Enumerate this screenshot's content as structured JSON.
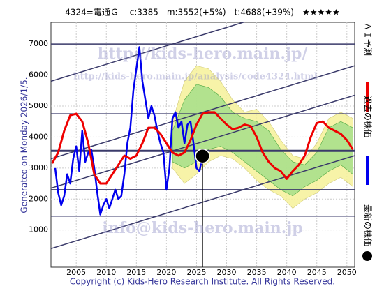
{
  "chart_data": {
    "type": "stock-forecast",
    "title": "4324=電通Ｇ　 c:3385　m:3552(+5%)　t:4688(+39%)　★★★★★",
    "generated": "Generated on Monday 2026/1/5.",
    "copyright": "Copyright (c) Kids-Hero Research Institute. All Rights Reserved.",
    "watermarks": [
      "http://kids-hero.main.jp/",
      "http://kids-hero.main.jp/analysis/code4324.html",
      "info@kids-hero.main.jp"
    ],
    "xlim": [
      2000.8,
      2051.3
    ],
    "ylim": [
      -200,
      7700
    ],
    "xticks": [
      2005,
      2010,
      2015,
      2020,
      2025,
      2030,
      2035,
      2040,
      2045,
      2050
    ],
    "yticks": [
      1000,
      2000,
      3000,
      4000,
      5000,
      6000,
      7000
    ],
    "grid": true,
    "series": [
      {
        "name": "過去の株価",
        "color": "#0000ee",
        "x": [
          2001.5,
          2002,
          2002.5,
          2003,
          2003.5,
          2004,
          2004.5,
          2005,
          2005.5,
          2006,
          2006.5,
          2007,
          2007.5,
          2008,
          2008.5,
          2009,
          2009.5,
          2010,
          2010.5,
          2011,
          2011.5,
          2012,
          2012.5,
          2013,
          2013.5,
          2014,
          2014.5,
          2015,
          2015.5,
          2016,
          2016.5,
          2017,
          2017.5,
          2018,
          2018.5,
          2019,
          2019.5,
          2020,
          2020.5,
          2021,
          2021.5,
          2022,
          2022.5,
          2023,
          2023.5,
          2024,
          2024.5,
          2025,
          2025.5,
          2026
        ],
        "values": [
          3000,
          2200,
          1800,
          2100,
          2800,
          2500,
          3300,
          3700,
          2900,
          4200,
          3200,
          3500,
          3600,
          3000,
          2200,
          1500,
          1800,
          2000,
          1700,
          2000,
          2300,
          2000,
          2100,
          2800,
          3800,
          4300,
          5500,
          6200,
          6900,
          5800,
          5200,
          4600,
          5000,
          4700,
          4200,
          3800,
          3500,
          2300,
          3000,
          4600,
          4800,
          4300,
          4500,
          3800,
          4400,
          4500,
          3800,
          3000,
          2900,
          3385
        ]
      },
      {
        "name": "ＡＩ予測",
        "color": "#ee0000",
        "x": [
          2001,
          2002,
          2003,
          2004,
          2005,
          2006,
          2007,
          2008,
          2009,
          2010,
          2011,
          2012,
          2013,
          2014,
          2015,
          2016,
          2017,
          2018,
          2019,
          2020,
          2021,
          2022,
          2023,
          2024,
          2025,
          2026,
          2027,
          2028,
          2029,
          2030,
          2031,
          2032,
          2033,
          2034,
          2035,
          2036,
          2037,
          2038,
          2039,
          2040,
          2041,
          2042,
          2043,
          2044,
          2045,
          2046,
          2047,
          2048,
          2049,
          2050,
          2051
        ],
        "values": [
          3150,
          3500,
          4200,
          4700,
          4750,
          4500,
          3800,
          2800,
          2500,
          2500,
          2800,
          3100,
          3400,
          3300,
          3400,
          3800,
          4300,
          4300,
          4100,
          3800,
          3500,
          3400,
          3500,
          3900,
          4400,
          4750,
          4800,
          4800,
          4600,
          4400,
          4250,
          4300,
          4400,
          4350,
          4000,
          3500,
          3200,
          3000,
          2900,
          2650,
          2900,
          3100,
          3400,
          4000,
          4450,
          4500,
          4300,
          4200,
          4100,
          3900,
          3600
        ]
      }
    ],
    "bands": [
      {
        "color": "#f6f29a",
        "x": [
          2021,
          2023,
          2025,
          2027,
          2029,
          2031,
          2033,
          2035,
          2037,
          2039,
          2041,
          2043,
          2045,
          2047,
          2049,
          2051
        ],
        "upper": [
          4500,
          5800,
          6300,
          6200,
          5800,
          5200,
          4800,
          4900,
          4500,
          3900,
          3400,
          3300,
          3800,
          4600,
          4800,
          4600
        ],
        "lower": [
          3000,
          2500,
          2800,
          3200,
          3400,
          3300,
          3000,
          2600,
          2300,
          2100,
          1700,
          2000,
          2200,
          2500,
          2700,
          2400
        ]
      },
      {
        "color": "#a6e08a",
        "x": [
          2021,
          2023,
          2025,
          2027,
          2029,
          2031,
          2033,
          2035,
          2037,
          2039,
          2041,
          2043,
          2045,
          2047,
          2049,
          2051
        ],
        "upper": [
          4200,
          5200,
          5700,
          5600,
          5300,
          4800,
          4600,
          4500,
          4200,
          3600,
          3200,
          3100,
          3500,
          4300,
          4500,
          4300
        ],
        "lower": [
          3200,
          3000,
          3200,
          3600,
          3700,
          3500,
          3200,
          2900,
          2600,
          2300,
          2100,
          2400,
          2600,
          2900,
          3100,
          2800
        ]
      }
    ],
    "channel_lines": [
      [
        5800,
        8800
      ],
      [
        3300,
        6300
      ],
      [
        2350,
        5350
      ],
      [
        400,
        3400
      ]
    ],
    "hlines": [
      7000,
      4750,
      3552,
      2300,
      1450
    ],
    "current": {
      "name": "最新の株価",
      "x": 2026,
      "value": 3385
    }
  }
}
